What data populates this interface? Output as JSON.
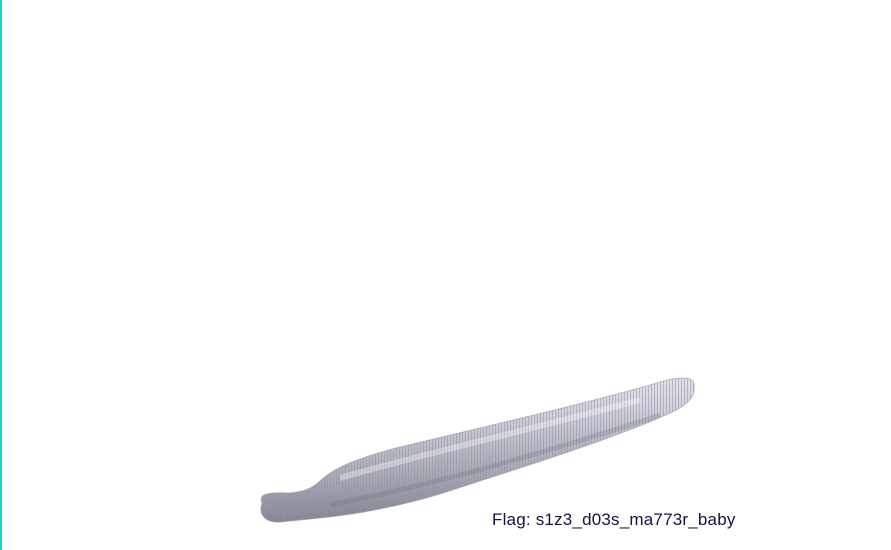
{
  "scene": {
    "object_icon": "elongated-rod-object",
    "colors": {
      "background": "#ffffff",
      "edge_accent": "#00e0d0",
      "object_light": "#e6e6ea",
      "object_mid": "#b9b9c0",
      "object_dark": "#7a7a84",
      "scanline": "#8f93b8",
      "caption_text": "#1a1040"
    }
  },
  "caption": {
    "text": "Flag: s1z3_d03s_ma773r_baby"
  }
}
